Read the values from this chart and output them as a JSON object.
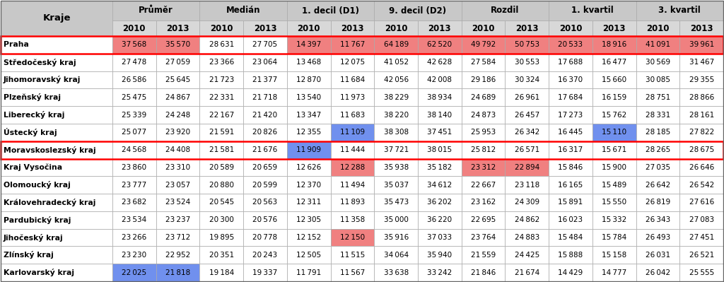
{
  "col_groups": [
    "Průměr",
    "Medián",
    "1. decil (D1)",
    "9. decil (D2)",
    "Rozdil",
    "1. kvartil",
    "3. kvartil"
  ],
  "years": [
    "2010",
    "2013"
  ],
  "kraje": [
    "Praha",
    "Středočeský kraj",
    "Jihomoravský kraj",
    "Plzeňský kraj",
    "Liberecký kraj",
    "Ústecký kraj",
    "Moravskoslezský kraj",
    "Kraj Vysočina",
    "Olomoucký kraj",
    "Královehradecký kraj",
    "Pardubický kraj",
    "Jihočeský kraj",
    "Zlínský kraj",
    "Karlovarský kraj"
  ],
  "data": [
    [
      37568,
      35570,
      28631,
      27705,
      14397,
      11767,
      64189,
      62520,
      49792,
      50753,
      20533,
      18916,
      41091,
      39961
    ],
    [
      27478,
      27059,
      23366,
      23064,
      13468,
      12075,
      41052,
      42628,
      27584,
      30553,
      17688,
      16477,
      30569,
      31467
    ],
    [
      26586,
      25645,
      21723,
      21377,
      12870,
      11684,
      42056,
      42008,
      29186,
      30324,
      16370,
      15660,
      30085,
      29355
    ],
    [
      25475,
      24867,
      22331,
      21718,
      13540,
      11973,
      38229,
      38934,
      24689,
      26961,
      17684,
      16159,
      28751,
      28866
    ],
    [
      25339,
      24248,
      22167,
      21420,
      13347,
      11683,
      38220,
      38140,
      24873,
      26457,
      17273,
      15762,
      28331,
      28161
    ],
    [
      25077,
      23920,
      21591,
      20826,
      12355,
      11109,
      38308,
      37451,
      25953,
      26342,
      16445,
      15110,
      28185,
      27822
    ],
    [
      24568,
      24408,
      21581,
      21676,
      11909,
      11444,
      37721,
      38015,
      25812,
      26571,
      16317,
      15671,
      28265,
      28675
    ],
    [
      23860,
      23310,
      20589,
      20659,
      12626,
      12288,
      35938,
      35182,
      23312,
      22894,
      15846,
      15900,
      27035,
      26646
    ],
    [
      23777,
      23057,
      20880,
      20599,
      12370,
      11494,
      35037,
      34612,
      22667,
      23118,
      16165,
      15489,
      26642,
      26542
    ],
    [
      23682,
      23524,
      20545,
      20563,
      12311,
      11893,
      35473,
      36202,
      23162,
      24309,
      15891,
      15550,
      26819,
      27616
    ],
    [
      23534,
      23237,
      20300,
      20576,
      12305,
      11358,
      35000,
      36220,
      22695,
      24862,
      16023,
      15332,
      26343,
      27083
    ],
    [
      23266,
      23712,
      19895,
      20778,
      12152,
      12150,
      35916,
      37033,
      23764,
      24883,
      15484,
      15784,
      26493,
      27451
    ],
    [
      23230,
      22952,
      20351,
      20243,
      12505,
      11515,
      34064,
      35940,
      21559,
      24425,
      15888,
      15158,
      26031,
      26521
    ],
    [
      22025,
      21818,
      19184,
      19337,
      11791,
      11567,
      33638,
      33242,
      21846,
      21674,
      14429,
      14777,
      26042,
      25555
    ]
  ],
  "cell_colors": {
    "0_0": "#F08080",
    "0_1": "#F08080",
    "0_4": "#F08080",
    "0_5": "#F08080",
    "0_6": "#F08080",
    "0_7": "#F08080",
    "0_8": "#F08080",
    "0_9": "#F08080",
    "0_10": "#F08080",
    "0_11": "#F08080",
    "0_12": "#F08080",
    "0_13": "#F08080",
    "5_5": "#7090EE",
    "5_11": "#7090EE",
    "6_4": "#7090EE",
    "7_5": "#F08080",
    "7_8": "#F08080",
    "7_9": "#F08080",
    "11_5": "#F08080",
    "13_0": "#7090EE",
    "13_1": "#7090EE"
  },
  "row_border_red": [
    0,
    6
  ],
  "header_bg": "#C8C8C8",
  "subheader_bg": "#D8D8D8",
  "default_cell_color": "#FFFFFF",
  "grid_color": "#AAAAAA",
  "kraje_label": "Kraje"
}
